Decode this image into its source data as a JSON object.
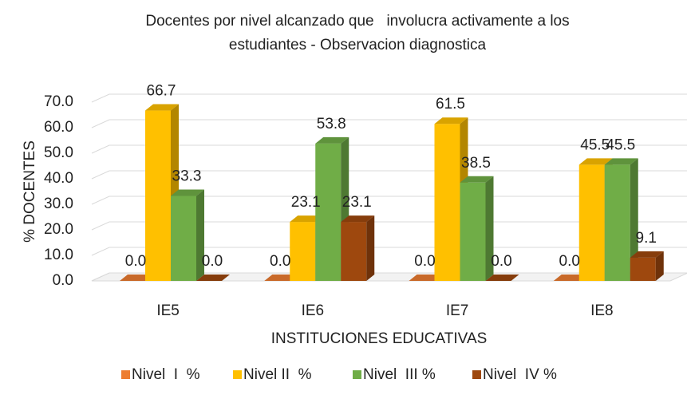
{
  "chart_data": {
    "type": "bar3d",
    "title": [
      "Docentes por nivel alcanzado que   involucra activamente a los",
      "estudiantes - Observacion diagnostica"
    ],
    "y_label": "% DOCENTES",
    "x_label": "INSTITUCIONES EDUCATIVAS",
    "categories": [
      "IE5",
      "IE6",
      "IE7",
      "IE8"
    ],
    "series": [
      {
        "name": "Nivel  I  %",
        "color": "#ed7d31",
        "values": [
          0,
          0,
          0,
          0
        ],
        "value_labels": [
          "0.0",
          "0.0",
          "0.0",
          "0.0"
        ]
      },
      {
        "name": "Nivel II  %",
        "color": "#ffc000",
        "values": [
          66.7,
          23.1,
          61.5,
          45.5
        ],
        "value_labels": [
          "66.7",
          "23.1",
          "61.5",
          "45.5"
        ]
      },
      {
        "name": "Nivel  III %",
        "color": "#70ad47",
        "values": [
          33.3,
          53.8,
          38.5,
          45.5
        ],
        "value_labels": [
          "33.3",
          "53.8",
          "38.5",
          "45.5"
        ]
      },
      {
        "name": "Nivel  IV %",
        "color": "#9e480e",
        "values": [
          0,
          23.1,
          0,
          9.1
        ],
        "value_labels": [
          "0.0",
          "23.1",
          "0.0",
          "9.1"
        ]
      }
    ],
    "ylim": [
      0,
      70
    ],
    "yticks": [
      {
        "value": 0,
        "label": "0.0"
      },
      {
        "value": 10,
        "label": "10.0"
      },
      {
        "value": 20,
        "label": "20.0"
      },
      {
        "value": 30,
        "label": "30.0"
      },
      {
        "value": 40,
        "label": "40.0"
      },
      {
        "value": 50,
        "label": "50.0"
      },
      {
        "value": 60,
        "label": "60.0"
      },
      {
        "value": 70,
        "label": "70.0"
      }
    ],
    "grid": true,
    "legend": "bottom"
  }
}
